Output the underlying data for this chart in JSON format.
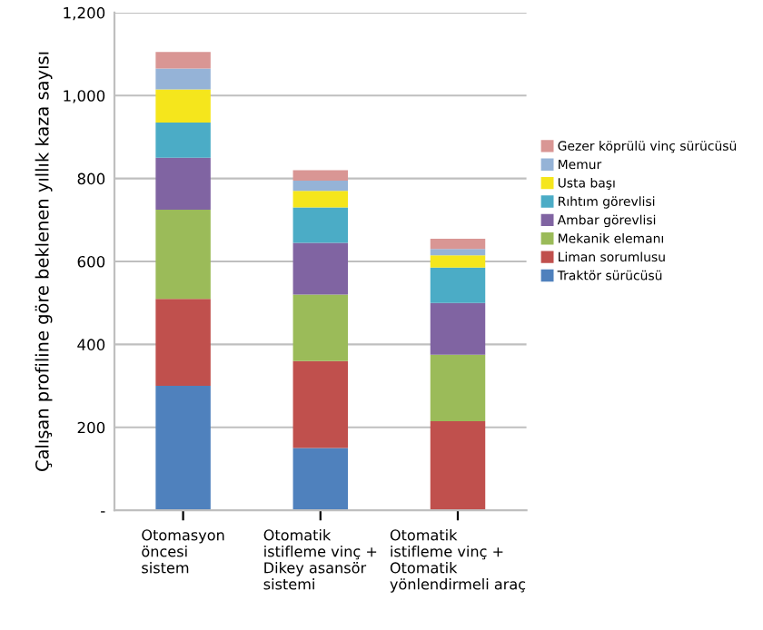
{
  "chart_data": {
    "type": "bar",
    "stacked": true,
    "ylabel": "Çalışan profiline göre beklenen yıllık kaza sayısı",
    "categories": [
      "Otomasyon\nöncesi\nsistem",
      "Otomatik\nistifleme vinç +\nDikey asansör\nsistemi",
      "Otomatik\nistifleme vinç +\nOtomatik\nyönlendirmeli araç"
    ],
    "series": [
      {
        "name": "Traktör sürücüsü",
        "color": "#4f81bd",
        "values": [
          300,
          150,
          0
        ]
      },
      {
        "name": "Liman sorumlusu",
        "color": "#c0504d",
        "values": [
          210,
          210,
          215
        ]
      },
      {
        "name": "Mekanik elemanı",
        "color": "#9bbb59",
        "values": [
          215,
          160,
          160
        ]
      },
      {
        "name": "Ambar görevlisi",
        "color": "#8064a2",
        "values": [
          125,
          125,
          125
        ]
      },
      {
        "name": "Rıhtım görevlisi",
        "color": "#4bacc6",
        "values": [
          85,
          85,
          85
        ]
      },
      {
        "name": "Usta başı",
        "color": "#f5e61c",
        "values": [
          80,
          40,
          30
        ]
      },
      {
        "name": "Memur",
        "color": "#95b3d7",
        "values": [
          50,
          25,
          15
        ]
      },
      {
        "name": "Gezer köprülü vinç sürücüsü",
        "color": "#d99694",
        "values": [
          40,
          25,
          25
        ]
      }
    ],
    "ylim": [
      0,
      1200
    ],
    "yticks": [
      {
        "value": 0,
        "label": "-"
      },
      200,
      400,
      600,
      800,
      {
        "value": 1000,
        "label": "1,000"
      },
      {
        "value": 1200,
        "label": "1,200"
      }
    ],
    "grid": "y",
    "legend": "right"
  }
}
